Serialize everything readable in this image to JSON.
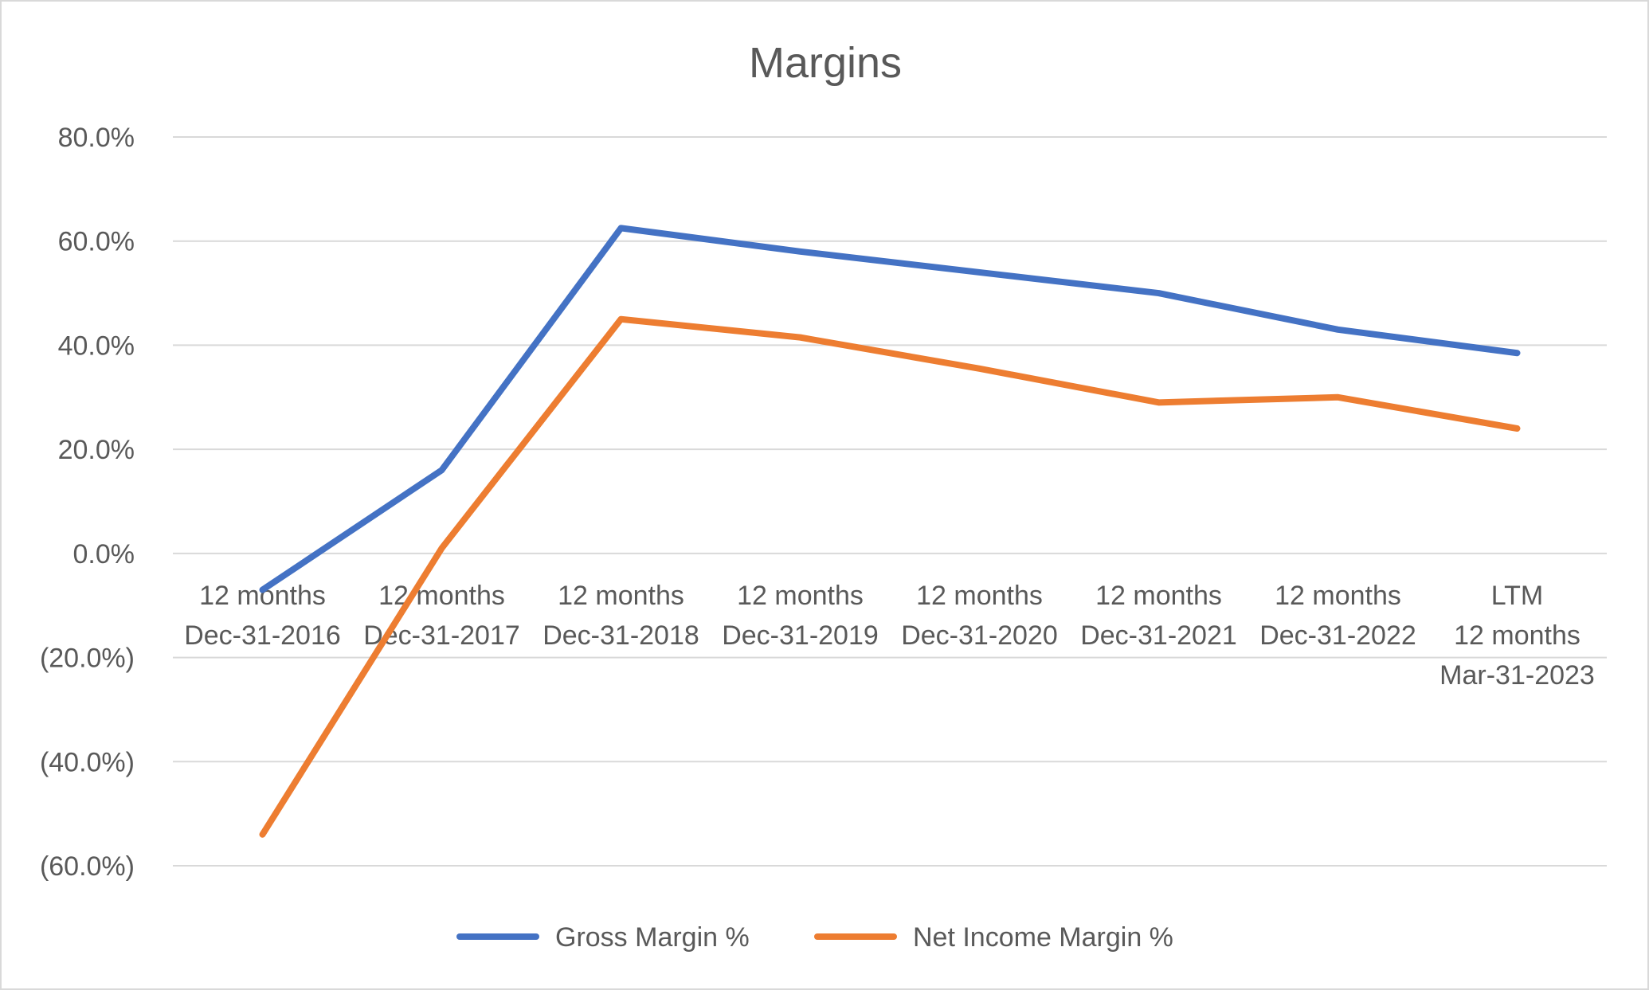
{
  "chart_data": {
    "type": "line",
    "title": "Margins",
    "xlabel": "",
    "ylabel": "",
    "ylim": [
      -60,
      80
    ],
    "yticks": [
      80,
      60,
      40,
      20,
      0,
      -20,
      -40,
      -60
    ],
    "ytick_labels": [
      "80.0%",
      "60.0%",
      "40.0%",
      "20.0%",
      "0.0%",
      "(20.0%)",
      "(40.0%)",
      "(60.0%)"
    ],
    "categories": [
      [
        "12 months",
        "Dec-31-2016"
      ],
      [
        "12 months",
        "Dec-31-2017"
      ],
      [
        "12 months",
        "Dec-31-2018"
      ],
      [
        "12 months",
        "Dec-31-2019"
      ],
      [
        "12 months",
        "Dec-31-2020"
      ],
      [
        "12 months",
        "Dec-31-2021"
      ],
      [
        "12 months",
        "Dec-31-2022"
      ],
      [
        "LTM",
        "12 months",
        "Mar-31-2023"
      ]
    ],
    "series": [
      {
        "name": "Gross Margin %",
        "color": "#4472c4",
        "values": [
          -7.0,
          16.0,
          62.5,
          58.0,
          54.0,
          50.0,
          43.0,
          38.5
        ]
      },
      {
        "name": "Net Income Margin %",
        "color": "#ed7d31",
        "values": [
          -54.0,
          1.0,
          45.0,
          41.5,
          35.5,
          29.0,
          30.0,
          24.0
        ]
      }
    ],
    "grid": true,
    "legend_position": "bottom"
  }
}
